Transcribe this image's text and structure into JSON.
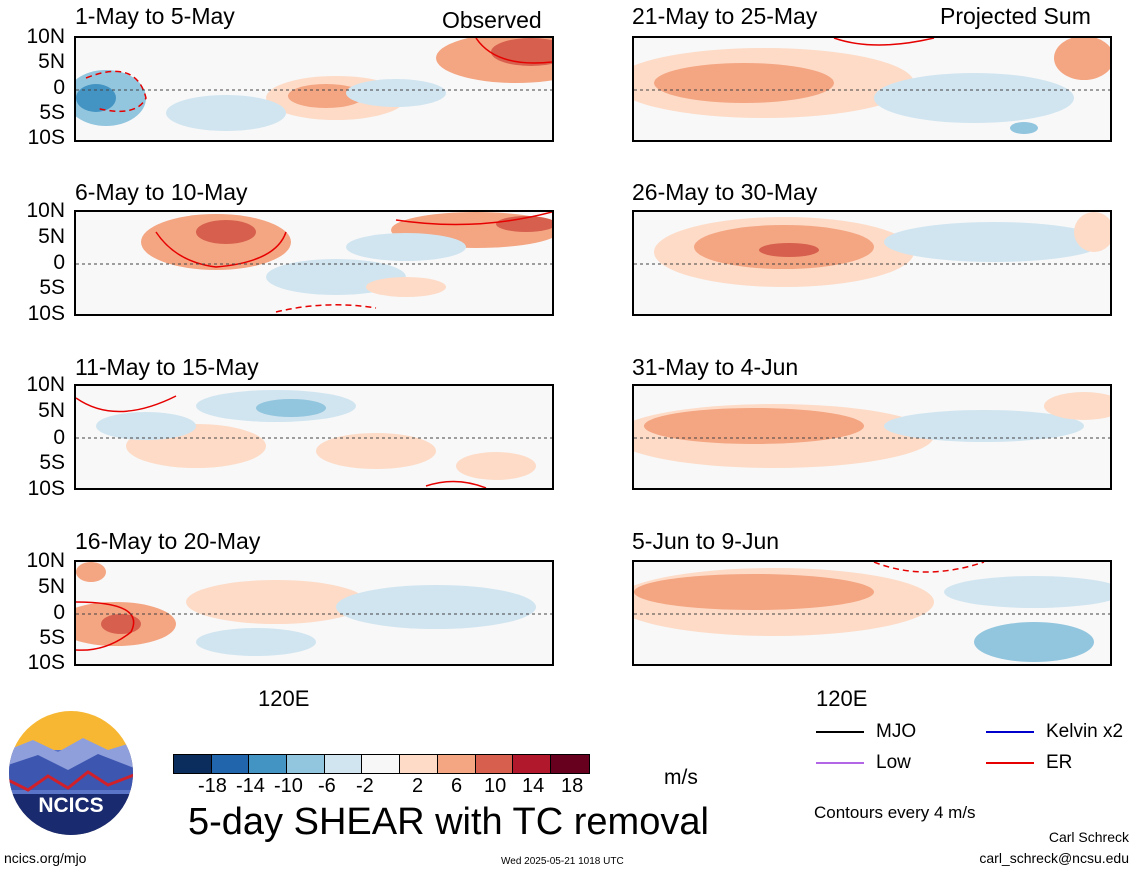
{
  "figure": {
    "title": "5-day SHEAR with TC removal",
    "units": "m/s",
    "contour_note": "Contours every 4 m/s",
    "credit_name": "Carl Schreck",
    "credit_email": "carl_schreck@ncsu.edu",
    "website": "ncics.org/mjo",
    "timestamp": "Wed 2025-05-21 1018 UTC",
    "logo_text": "NCICS"
  },
  "columns": {
    "left_tag": "Observed",
    "right_tag": "Projected Sum",
    "lon_label": "120E"
  },
  "lat_labels": [
    "10N",
    "5N",
    "0",
    "5S",
    "10S"
  ],
  "panels_left": [
    {
      "title": "1-May to 5-May"
    },
    {
      "title": "6-May to 10-May"
    },
    {
      "title": "11-May to 15-May"
    },
    {
      "title": "16-May to 20-May"
    }
  ],
  "panels_right": [
    {
      "title": "21-May to 25-May"
    },
    {
      "title": "26-May to 30-May"
    },
    {
      "title": "31-May to 4-Jun"
    },
    {
      "title": "5-Jun to 9-Jun"
    }
  ],
  "colorbar": {
    "ticks": [
      "-18",
      "-14",
      "-10",
      "-6",
      "-2",
      "2",
      "6",
      "10",
      "14",
      "18"
    ],
    "colors": [
      "#0b2d5e",
      "#2166ac",
      "#4393c3",
      "#92c5de",
      "#d1e5f0",
      "#f7f7f7",
      "#fddbc7",
      "#f4a582",
      "#d6604d",
      "#b2182b",
      "#67001f"
    ]
  },
  "legend": [
    {
      "label": "MJO",
      "color": "#000000",
      "style": "solid"
    },
    {
      "label": "Kelvin x2",
      "color": "#0000cc",
      "style": "solid"
    },
    {
      "label": "Low",
      "color": "#b366e6",
      "style": "solid"
    },
    {
      "label": "ER",
      "color": "#e60000",
      "style": "solid"
    }
  ]
}
